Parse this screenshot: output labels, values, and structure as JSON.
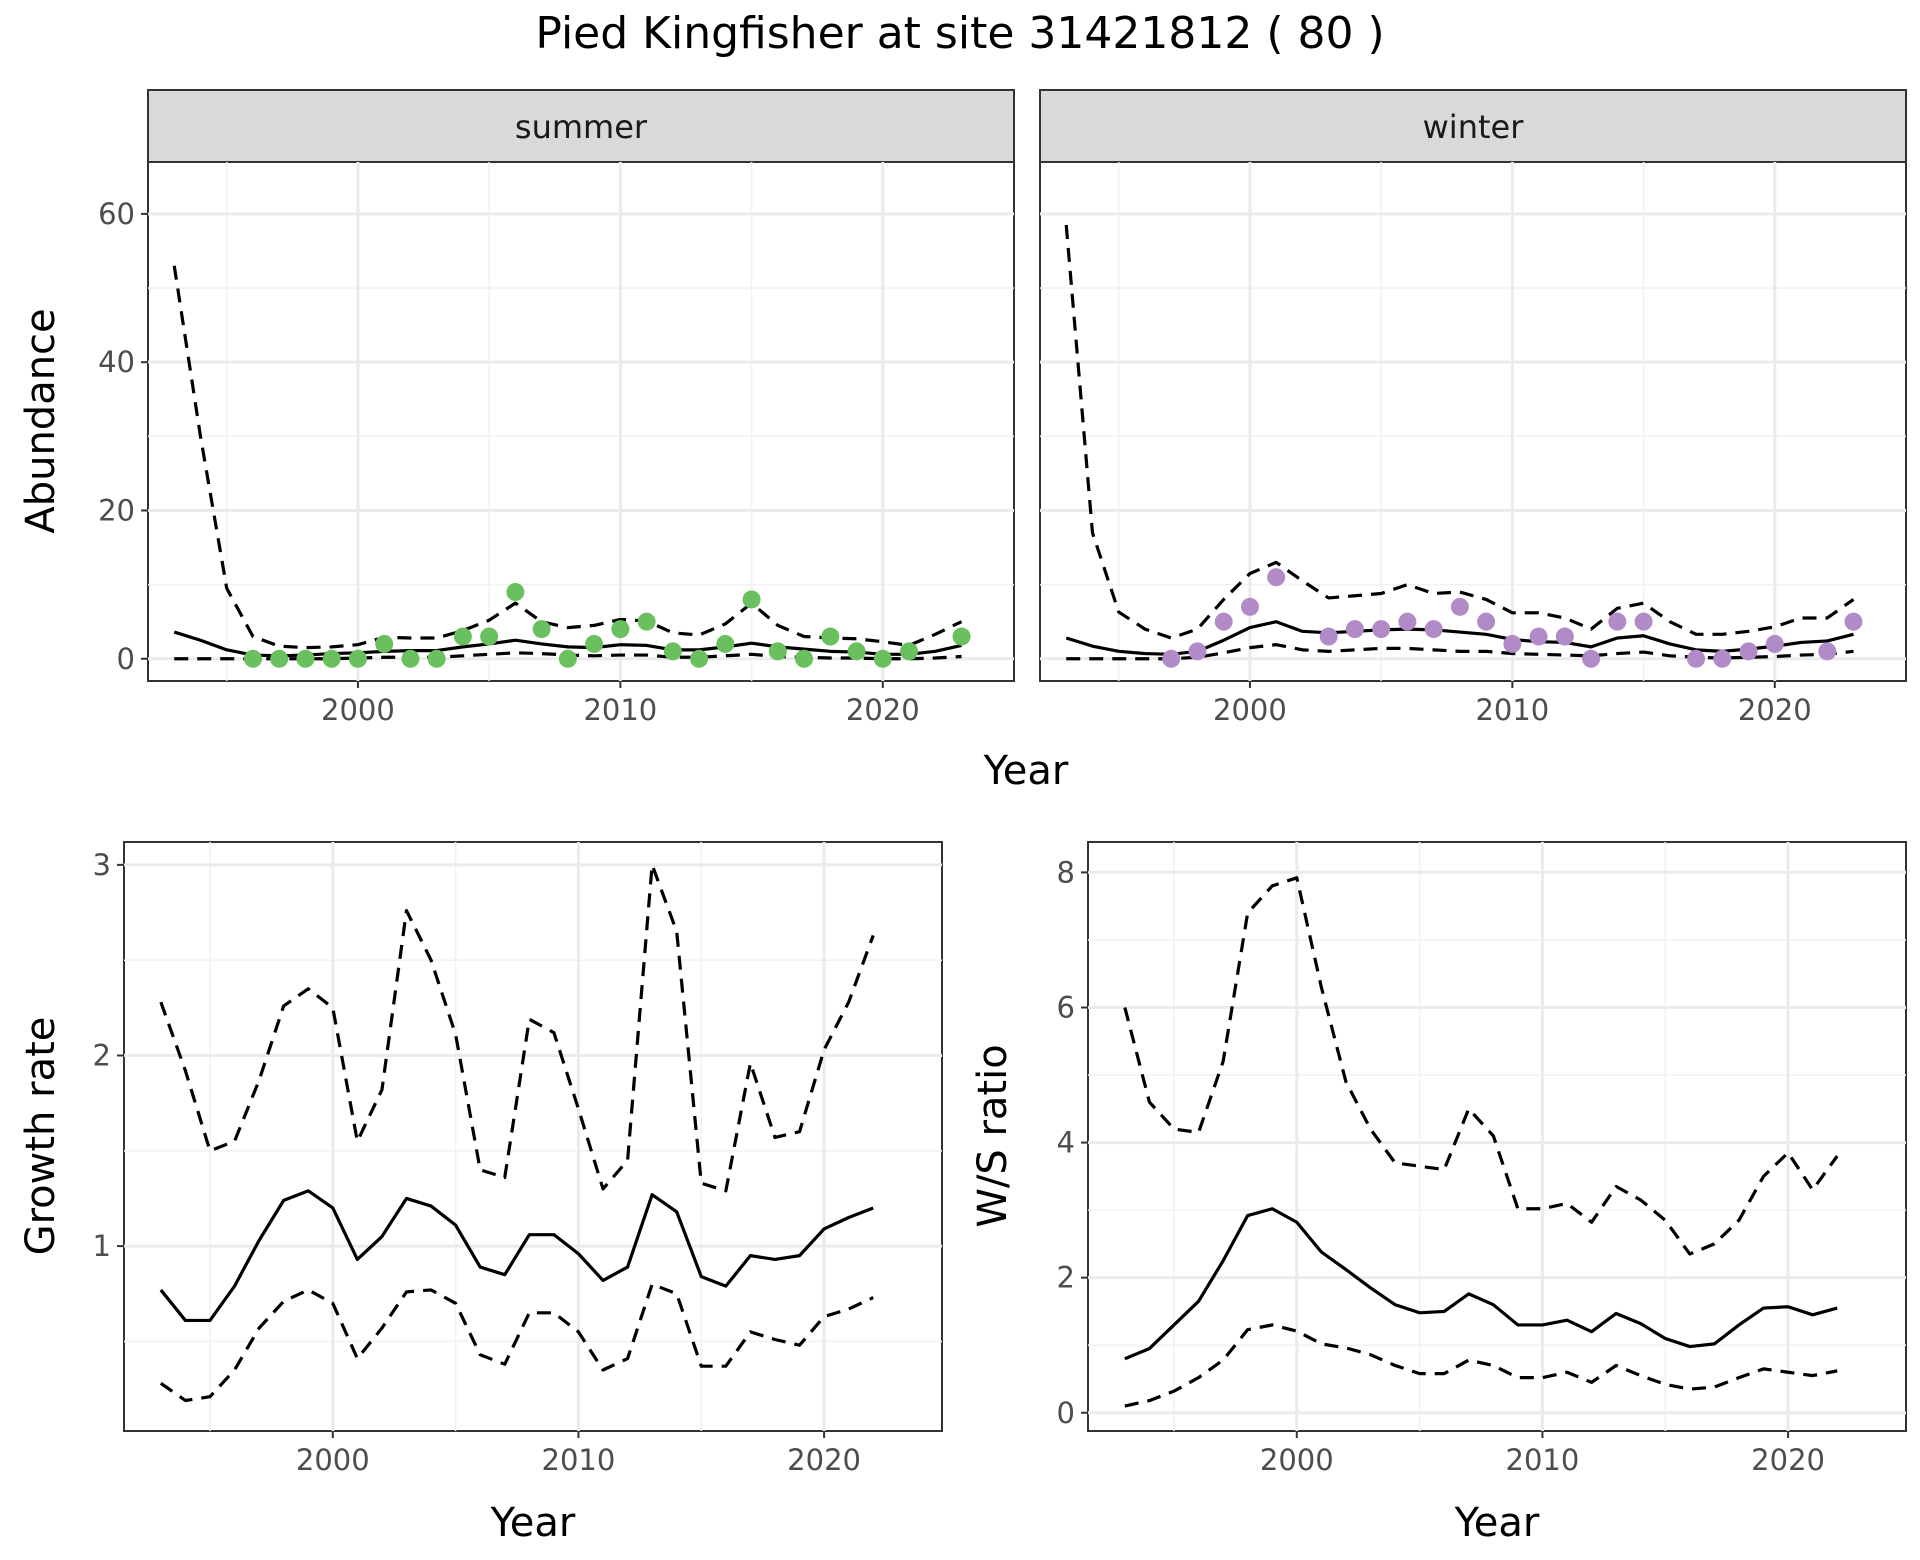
{
  "title": "Pied Kingfisher at site 31421812 ( 80 )",
  "colors": {
    "summer_points": "#6abf5e",
    "winter_points": "#b18ac8"
  },
  "chart_data": [
    {
      "id": "abundance",
      "type": "line",
      "facets": [
        "summer",
        "winter"
      ],
      "xlabel": "Year",
      "ylabel": "Abundance",
      "xlim": [
        1992,
        2025
      ],
      "ylim": [
        -3,
        67
      ],
      "xticks": [
        2000,
        2010,
        2020
      ],
      "yticks": [
        0,
        20,
        40,
        60
      ],
      "grid": true,
      "panels": [
        {
          "facet": "summer",
          "x": [
            1993,
            1994,
            1995,
            1996,
            1997,
            1998,
            1999,
            2000,
            2001,
            2002,
            2003,
            2004,
            2005,
            2006,
            2007,
            2008,
            2009,
            2010,
            2011,
            2012,
            2013,
            2014,
            2015,
            2016,
            2017,
            2018,
            2019,
            2020,
            2021,
            2022,
            2023
          ],
          "series": [
            {
              "role": "mean",
              "style": "solid",
              "values": [
                3.6,
                2.5,
                1.2,
                0.5,
                0.4,
                0.5,
                0.7,
                0.8,
                1.0,
                1.1,
                1.1,
                1.6,
                2.0,
                2.5,
                2.0,
                1.6,
                1.5,
                1.9,
                1.8,
                1.2,
                1.2,
                1.6,
                2.1,
                1.6,
                1.3,
                1.0,
                0.9,
                0.6,
                0.6,
                1.0,
                1.8
              ]
            },
            {
              "role": "upper",
              "style": "dashed",
              "values": [
                53.0,
                30.0,
                9.5,
                3.0,
                1.7,
                1.5,
                1.6,
                1.9,
                2.9,
                2.8,
                2.8,
                3.8,
                5.2,
                7.5,
                5.0,
                4.2,
                4.5,
                5.3,
                5.1,
                3.5,
                3.2,
                4.7,
                7.5,
                4.5,
                3.0,
                2.8,
                2.7,
                2.3,
                1.8,
                3.3,
                5.0
              ]
            },
            {
              "role": "lower",
              "style": "dashed",
              "values": [
                0.0,
                0.0,
                0.0,
                0.0,
                0.0,
                0.0,
                0.0,
                0.1,
                0.2,
                0.2,
                0.2,
                0.4,
                0.6,
                0.8,
                0.7,
                0.5,
                0.4,
                0.5,
                0.5,
                0.2,
                0.2,
                0.4,
                0.6,
                0.3,
                0.2,
                0.1,
                0.1,
                0.0,
                0.0,
                0.1,
                0.3
              ]
            }
          ],
          "points": {
            "x": [
              1996,
              1997,
              1998,
              1999,
              2000,
              2001,
              2002,
              2003,
              2004,
              2005,
              2006,
              2007,
              2008,
              2009,
              2010,
              2011,
              2012,
              2013,
              2014,
              2015,
              2016,
              2017,
              2018,
              2019,
              2020,
              2021,
              2023
            ],
            "y": [
              0,
              0,
              0,
              0,
              0,
              2,
              0,
              0,
              3,
              3,
              9,
              4,
              0,
              2,
              4,
              5,
              1,
              0,
              2,
              8,
              1,
              0,
              3,
              1,
              0,
              1,
              3
            ]
          }
        },
        {
          "facet": "winter",
          "x": [
            1993,
            1994,
            1995,
            1996,
            1997,
            1998,
            1999,
            2000,
            2001,
            2002,
            2003,
            2004,
            2005,
            2006,
            2007,
            2008,
            2009,
            2010,
            2011,
            2012,
            2013,
            2014,
            2015,
            2016,
            2017,
            2018,
            2019,
            2020,
            2021,
            2022,
            2023
          ],
          "series": [
            {
              "role": "mean",
              "style": "solid",
              "values": [
                2.8,
                1.7,
                1.0,
                0.7,
                0.6,
                1.0,
                2.5,
                4.2,
                5.0,
                3.7,
                3.5,
                3.7,
                3.9,
                4.0,
                3.9,
                3.6,
                3.3,
                2.6,
                2.3,
                2.2,
                1.6,
                2.8,
                3.1,
                2.0,
                1.2,
                1.0,
                1.3,
                1.7,
                2.2,
                2.4,
                3.3
              ]
            },
            {
              "role": "upper",
              "style": "dashed",
              "values": [
                58.5,
                17.0,
                6.3,
                4.0,
                2.8,
                4.0,
                8.0,
                11.5,
                13.0,
                10.5,
                8.2,
                8.5,
                8.8,
                10.0,
                8.8,
                9.0,
                8.0,
                6.2,
                6.2,
                5.5,
                4.0,
                6.8,
                7.5,
                5.0,
                3.3,
                3.3,
                3.7,
                4.3,
                5.5,
                5.5,
                8.0
              ]
            },
            {
              "role": "lower",
              "style": "dashed",
              "values": [
                0.0,
                0.0,
                0.0,
                0.0,
                0.0,
                0.2,
                0.8,
                1.5,
                1.9,
                1.2,
                1.0,
                1.2,
                1.4,
                1.4,
                1.2,
                1.0,
                1.0,
                0.7,
                0.6,
                0.5,
                0.4,
                0.7,
                0.9,
                0.4,
                0.2,
                0.1,
                0.2,
                0.3,
                0.5,
                0.6,
                1.0
              ]
            }
          ],
          "points": {
            "x": [
              1997,
              1998,
              1999,
              2000,
              2001,
              2003,
              2004,
              2005,
              2006,
              2007,
              2008,
              2009,
              2010,
              2011,
              2012,
              2013,
              2014,
              2015,
              2017,
              2018,
              2019,
              2020,
              2022,
              2023
            ],
            "y": [
              0,
              1,
              5,
              7,
              11,
              3,
              4,
              4,
              5,
              4,
              7,
              5,
              2,
              3,
              3,
              0,
              5,
              5,
              0,
              0,
              1,
              2,
              1,
              5
            ]
          }
        }
      ]
    },
    {
      "id": "growth",
      "type": "line",
      "xlabel": "Year",
      "ylabel": "Growth rate",
      "xlim": [
        1991.5,
        2024.8
      ],
      "ylim": [
        0.03,
        3.12
      ],
      "xticks": [
        2000,
        2010,
        2020
      ],
      "yticks": [
        1,
        2,
        3
      ],
      "grid": true,
      "x": [
        1993,
        1994,
        1995,
        1996,
        1997,
        1998,
        1999,
        2000,
        2001,
        2002,
        2003,
        2004,
        2005,
        2006,
        2007,
        2008,
        2009,
        2010,
        2011,
        2012,
        2013,
        2014,
        2015,
        2016,
        2017,
        2018,
        2019,
        2020,
        2021,
        2022
      ],
      "series": [
        {
          "role": "mean",
          "style": "solid",
          "values": [
            0.77,
            0.61,
            0.61,
            0.79,
            1.03,
            1.24,
            1.29,
            1.2,
            0.93,
            1.05,
            1.25,
            1.21,
            1.11,
            0.89,
            0.85,
            1.06,
            1.06,
            0.96,
            0.82,
            0.89,
            1.27,
            1.18,
            0.84,
            0.79,
            0.95,
            0.93,
            0.95,
            1.09,
            1.15,
            1.2
          ]
        },
        {
          "role": "upper",
          "style": "dashed",
          "values": [
            2.28,
            1.92,
            1.5,
            1.55,
            1.87,
            2.26,
            2.35,
            2.25,
            1.55,
            1.82,
            2.76,
            2.5,
            2.11,
            1.4,
            1.36,
            2.19,
            2.12,
            1.72,
            1.3,
            1.45,
            3.0,
            2.65,
            1.33,
            1.29,
            1.96,
            1.57,
            1.6,
            2.03,
            2.28,
            2.63
          ]
        },
        {
          "role": "lower",
          "style": "dashed",
          "values": [
            0.28,
            0.19,
            0.21,
            0.35,
            0.57,
            0.71,
            0.77,
            0.7,
            0.41,
            0.57,
            0.76,
            0.77,
            0.7,
            0.43,
            0.38,
            0.65,
            0.65,
            0.55,
            0.35,
            0.41,
            0.8,
            0.75,
            0.37,
            0.37,
            0.55,
            0.51,
            0.48,
            0.63,
            0.67,
            0.73
          ]
        }
      ]
    },
    {
      "id": "ratio",
      "type": "line",
      "xlabel": "Year",
      "ylabel": "W/S ratio",
      "xlim": [
        1991.5,
        2024.8
      ],
      "ylim": [
        -0.27,
        8.45
      ],
      "xticks": [
        2000,
        2010,
        2020
      ],
      "yticks": [
        0,
        2,
        4,
        6,
        8
      ],
      "grid": true,
      "x": [
        1993,
        1994,
        1995,
        1996,
        1997,
        1998,
        1999,
        2000,
        2001,
        2002,
        2003,
        2004,
        2005,
        2006,
        2007,
        2008,
        2009,
        2010,
        2011,
        2012,
        2013,
        2014,
        2015,
        2016,
        2017,
        2018,
        2019,
        2020,
        2021,
        2022
      ],
      "series": [
        {
          "role": "mean",
          "style": "solid",
          "values": [
            0.8,
            0.95,
            1.3,
            1.65,
            2.25,
            2.92,
            3.02,
            2.82,
            2.38,
            2.12,
            1.85,
            1.6,
            1.48,
            1.5,
            1.76,
            1.6,
            1.3,
            1.3,
            1.37,
            1.2,
            1.47,
            1.32,
            1.1,
            0.98,
            1.02,
            1.3,
            1.55,
            1.57,
            1.45,
            1.55
          ]
        },
        {
          "role": "upper",
          "style": "dashed",
          "values": [
            6.0,
            4.6,
            4.2,
            4.15,
            5.2,
            7.4,
            7.8,
            7.92,
            6.3,
            4.9,
            4.2,
            3.7,
            3.65,
            3.6,
            4.5,
            4.1,
            3.02,
            3.02,
            3.1,
            2.82,
            3.35,
            3.15,
            2.85,
            2.35,
            2.5,
            2.85,
            3.5,
            3.85,
            3.3,
            3.8
          ]
        },
        {
          "role": "lower",
          "style": "dashed",
          "values": [
            0.1,
            0.18,
            0.32,
            0.52,
            0.78,
            1.23,
            1.3,
            1.21,
            1.02,
            0.96,
            0.86,
            0.7,
            0.58,
            0.58,
            0.78,
            0.7,
            0.52,
            0.52,
            0.6,
            0.45,
            0.7,
            0.55,
            0.42,
            0.35,
            0.38,
            0.52,
            0.65,
            0.6,
            0.55,
            0.62
          ]
        }
      ]
    }
  ]
}
